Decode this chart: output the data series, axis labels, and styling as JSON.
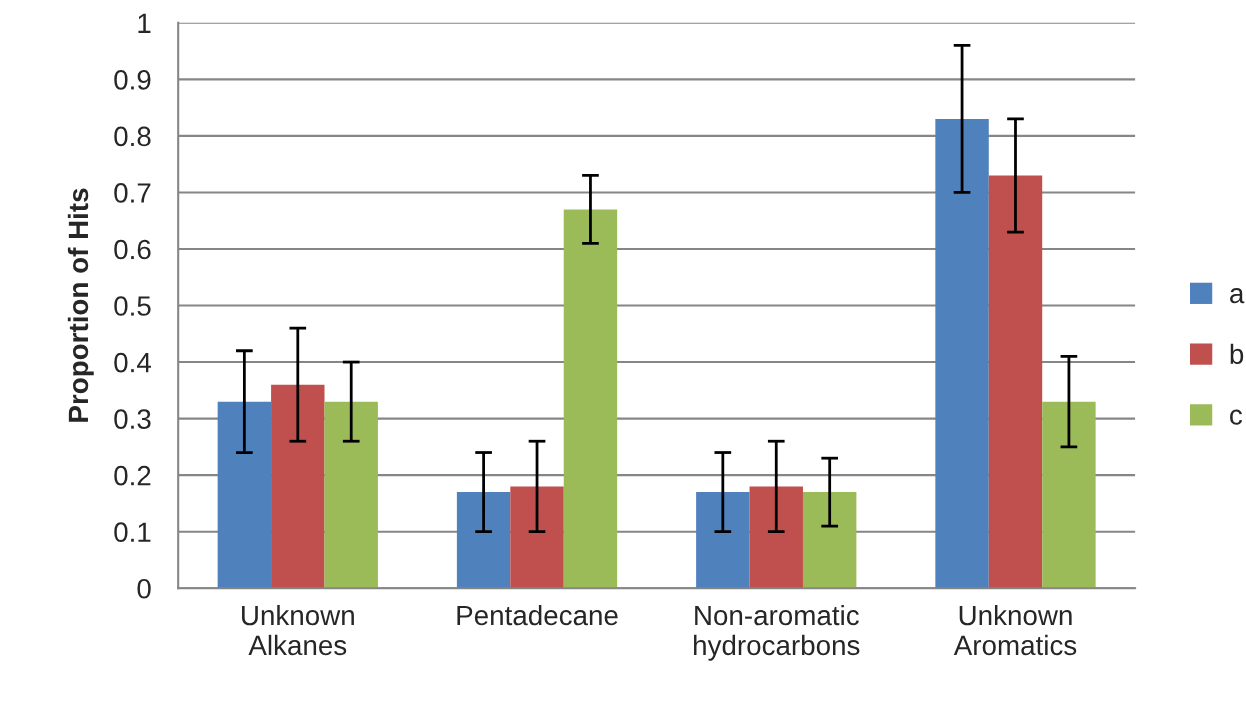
{
  "chart_data": {
    "type": "bar",
    "ylabel": "Proportion of Hits",
    "categories": [
      "Unknown\nAlkanes",
      "Pentadecane",
      "Non-aromatic\nhydrocarbons",
      "Unknown\nAromatics"
    ],
    "series": [
      {
        "name": "a",
        "color": "#4f81bd",
        "values": [
          0.33,
          0.17,
          0.17,
          0.83
        ],
        "errors": [
          0.09,
          0.07,
          0.07,
          0.13
        ]
      },
      {
        "name": "b",
        "color": "#c0504d",
        "values": [
          0.36,
          0.18,
          0.18,
          0.73
        ],
        "errors": [
          0.1,
          0.08,
          0.08,
          0.1
        ]
      },
      {
        "name": "c",
        "color": "#9bbb59",
        "values": [
          0.33,
          0.67,
          0.17,
          0.33
        ],
        "errors": [
          0.07,
          0.06,
          0.06,
          0.08
        ]
      }
    ],
    "ylim": [
      0,
      1
    ],
    "yticks": [
      0,
      0.1,
      0.2,
      0.3,
      0.4,
      0.5,
      0.6,
      0.7,
      0.8,
      0.9,
      1
    ],
    "grid": "y",
    "legend": "right"
  }
}
